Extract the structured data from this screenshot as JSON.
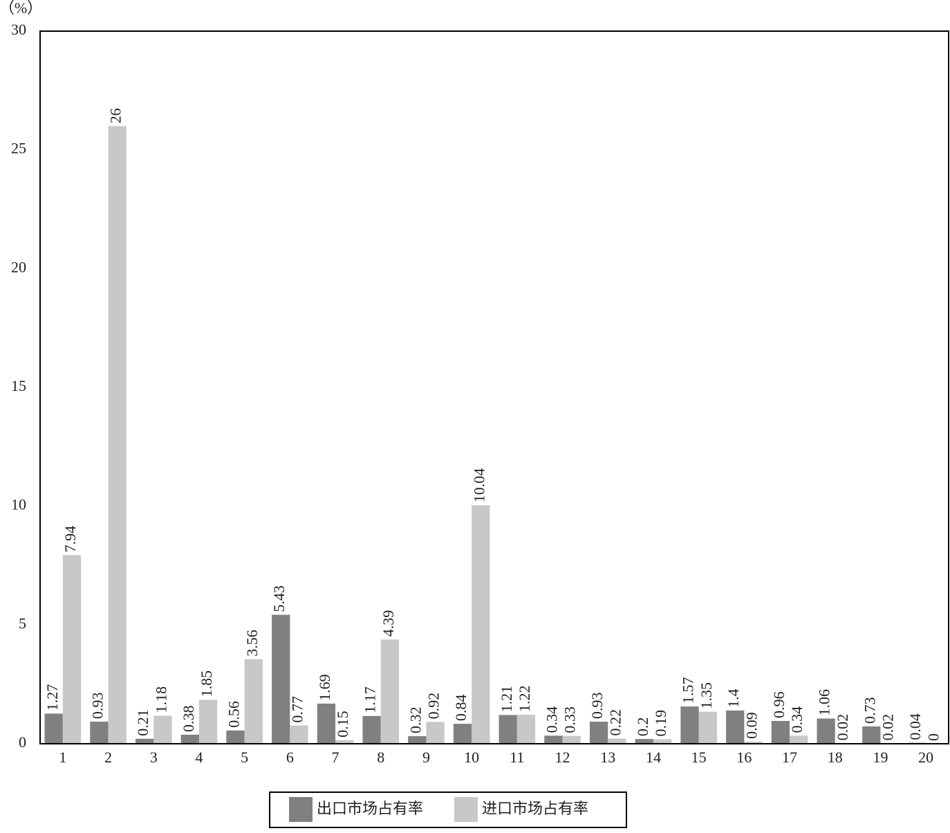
{
  "chart_data": {
    "type": "bar",
    "y_label": "（%）",
    "categories": [
      "1",
      "2",
      "3",
      "4",
      "5",
      "6",
      "7",
      "8",
      "9",
      "10",
      "11",
      "12",
      "13",
      "14",
      "15",
      "16",
      "17",
      "18",
      "19",
      "20"
    ],
    "series": [
      {
        "name": "出口市场占有率",
        "color": "#808080",
        "values": [
          1.27,
          0.93,
          0.21,
          0.38,
          0.56,
          5.43,
          1.69,
          1.17,
          0.32,
          0.84,
          1.21,
          0.34,
          0.93,
          0.2,
          1.57,
          1.4,
          0.96,
          1.06,
          0.73,
          0.04
        ]
      },
      {
        "name": "进口市场占有率",
        "color": "#c8c8c8",
        "values": [
          7.94,
          26,
          1.18,
          1.85,
          3.56,
          0.77,
          0.15,
          4.39,
          0.92,
          10.04,
          1.22,
          0.33,
          0.22,
          0.19,
          1.35,
          0.09,
          0.34,
          0.02,
          0.02,
          0
        ]
      }
    ],
    "ylim": [
      0,
      30
    ],
    "yticks": [
      0,
      5,
      10,
      15,
      20,
      25,
      30
    ],
    "grid": false,
    "legend": "bottom"
  }
}
